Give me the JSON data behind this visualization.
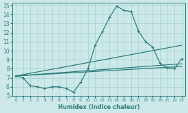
{
  "bg_color": "#cce8e8",
  "line_color": "#2d7d7d",
  "grid_color": "#aad4d4",
  "xlabel": "Humidex (Indice chaleur)",
  "xlim": [
    -0.5,
    23.5
  ],
  "ylim": [
    5,
    15.3
  ],
  "xticks": [
    0,
    1,
    2,
    3,
    4,
    5,
    6,
    7,
    8,
    9,
    10,
    11,
    12,
    13,
    14,
    15,
    16,
    17,
    18,
    19,
    20,
    21,
    22,
    23
  ],
  "yticks": [
    5,
    6,
    7,
    8,
    9,
    10,
    11,
    12,
    13,
    14,
    15
  ],
  "main_x": [
    0,
    1,
    2,
    3,
    4,
    5,
    6,
    7,
    8,
    9,
    10,
    11,
    12,
    13,
    14,
    15,
    16,
    17
  ],
  "main_y": [
    7.2,
    7.0,
    6.1,
    6.0,
    5.8,
    6.0,
    6.0,
    5.8,
    5.4,
    6.5,
    8.0,
    10.6,
    12.1,
    13.7,
    14.95,
    14.45,
    14.35,
    12.2
  ],
  "tail_x": [
    17,
    18,
    19,
    20,
    21,
    22,
    23
  ],
  "tail_y": [
    12.2,
    11.0,
    10.4,
    8.6,
    8.1,
    8.0,
    9.1
  ],
  "trend1_x": [
    0,
    23
  ],
  "trend1_y": [
    7.2,
    10.6
  ],
  "trend2_x": [
    0,
    23
  ],
  "trend2_y": [
    7.2,
    8.55
  ],
  "trend3_x": [
    0,
    23
  ],
  "trend3_y": [
    7.2,
    8.25
  ]
}
